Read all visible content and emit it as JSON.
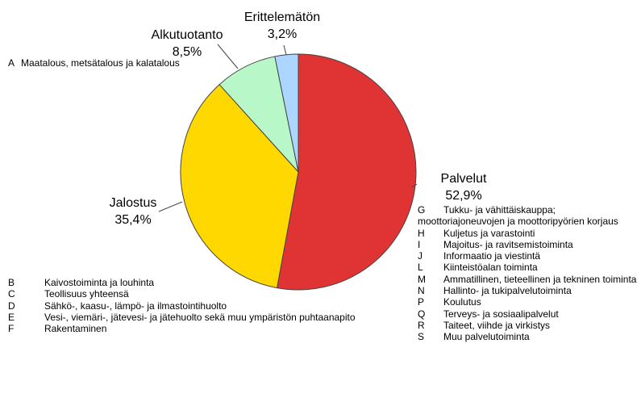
{
  "chart_data": {
    "type": "pie",
    "categories": [
      "Palvelut",
      "Jalostus",
      "Alkutuotanto",
      "Erittelemätön"
    ],
    "values": [
      52.9,
      35.4,
      8.5,
      3.2
    ],
    "value_labels": [
      "52,9%",
      "35,4%",
      "8,5%",
      "3,2%"
    ],
    "colors": [
      "#e03434",
      "#ffd800",
      "#b8f8c8",
      "#acd6ff"
    ],
    "notes_primary": [
      {
        "code": "A",
        "text": "Maatalous, metsätalous ja kalatalous"
      }
    ],
    "notes_secondary": [
      {
        "code": "B",
        "text": "Kaivostoiminta ja louhinta"
      },
      {
        "code": "C",
        "text": "Teollisuus yhteensä"
      },
      {
        "code": "D",
        "text": "Sähkö-, kaasu-, lämpö- ja ilmastointihuolto"
      },
      {
        "code": "E",
        "text": "Vesi-, viemäri-, jätevesi- ja jätehuolto sekä muu ympäristön puhtaanapito"
      },
      {
        "code": "F",
        "text": "Rakentaminen"
      }
    ],
    "notes_services": [
      {
        "code": "G",
        "text": "Tukku- ja vähittäiskauppa; moottoriajoneuvojen ja moottoripyörien korjaus"
      },
      {
        "code": "H",
        "text": "Kuljetus ja varastointi"
      },
      {
        "code": "I",
        "text": "Majoitus- ja ravitsemistoiminta"
      },
      {
        "code": "J",
        "text": "Informaatio ja viestintä"
      },
      {
        "code": "L",
        "text": "Kiinteistöalan toiminta"
      },
      {
        "code": "M",
        "text": "Ammatillinen, tieteellinen ja tekninen toiminta"
      },
      {
        "code": "N",
        "text": "Hallinto- ja tukipalvelutoiminta"
      },
      {
        "code": "P",
        "text": "Koulutus"
      },
      {
        "code": "Q",
        "text": "Terveys- ja sosiaalipalvelut"
      },
      {
        "code": "R",
        "text": "Taiteet, viihde ja virkistys"
      },
      {
        "code": "S",
        "text": "Muu palvelutoiminta"
      }
    ]
  }
}
